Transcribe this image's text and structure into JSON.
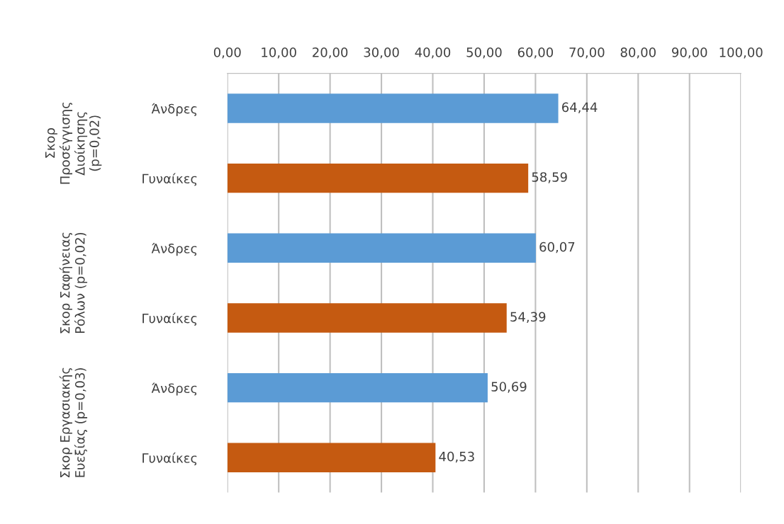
{
  "chart_data": {
    "type": "bar",
    "orientation": "horizontal",
    "categories": [
      "Άνδρες",
      "Γυναίκες",
      "Άνδρες",
      "Γυναίκες",
      "Άνδρες",
      "Γυναίκες"
    ],
    "values": [
      64.44,
      58.59,
      60.07,
      54.39,
      50.69,
      40.53
    ],
    "colors": [
      "#5b9bd5",
      "#c55a11",
      "#5b9bd5",
      "#c55a11",
      "#5b9bd5",
      "#c55a11"
    ],
    "value_labels": [
      "64,44",
      "58,59",
      "60,07",
      "54,39",
      "50,69",
      "40,53"
    ],
    "xlim": [
      0,
      100
    ],
    "xticks": [
      {
        "value": 0,
        "label": "0,00"
      },
      {
        "value": 10,
        "label": "10,00"
      },
      {
        "value": 20,
        "label": "20,00"
      },
      {
        "value": 30,
        "label": "30,00"
      },
      {
        "value": 40,
        "label": "40,00"
      },
      {
        "value": 50,
        "label": "50,00"
      },
      {
        "value": 60,
        "label": "60,00"
      },
      {
        "value": 70,
        "label": "70,00"
      },
      {
        "value": 80,
        "label": "80,00"
      },
      {
        "value": 90,
        "label": "90,00"
      },
      {
        "value": 100,
        "label": "100,00"
      }
    ],
    "annotations": [
      "Σκορ\nΠροσέγγισης\nΔιοίκησης\n(p=0,02)",
      "Σκορ Σαφήνειας\nΡόλων (p=0,02)",
      "Σκορ Εργασιακής\nΕυεξίας (p=0,03)"
    ],
    "grid": "x",
    "legend": false
  }
}
